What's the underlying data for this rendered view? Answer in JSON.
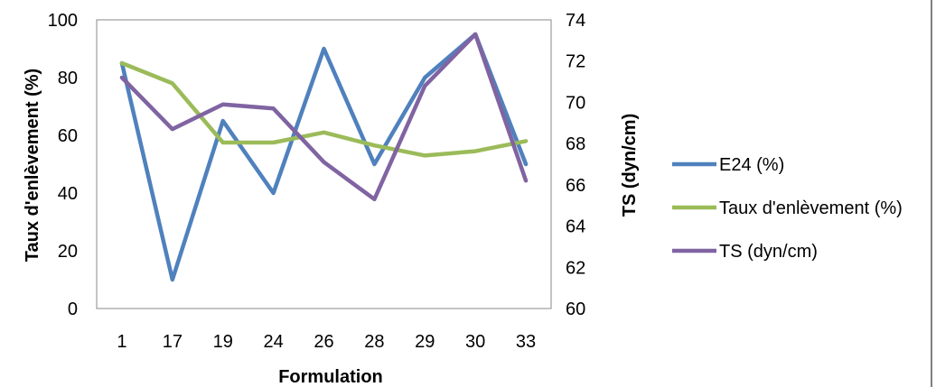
{
  "chart_data": {
    "type": "line",
    "categories": [
      "1",
      "17",
      "19",
      "24",
      "26",
      "28",
      "29",
      "30",
      "33"
    ],
    "xlabel": "Formulation",
    "ylabel_left": "Taux d'enlèvement (%)",
    "ylabel_right": "TS (dyn/cm)",
    "ylim_left": [
      0,
      100
    ],
    "yticks_left": [
      "0",
      "20",
      "40",
      "60",
      "80",
      "100"
    ],
    "ylim_right": [
      60,
      74
    ],
    "yticks_right": [
      "60",
      "62",
      "64",
      "66",
      "68",
      "70",
      "72",
      "74"
    ],
    "grid": false,
    "legend_position": "right",
    "series": [
      {
        "name": "E24 (%)",
        "axis": "left",
        "color": "#4f81bd",
        "values": [
          85,
          10,
          65,
          40,
          90,
          50,
          80,
          95,
          50
        ]
      },
      {
        "name": "Taux d'enlèvement (%)",
        "axis": "left",
        "color": "#9bbb59",
        "values": [
          85,
          78,
          57.5,
          57.5,
          61,
          56.5,
          53,
          54.5,
          58
        ]
      },
      {
        "name": "TS (dyn/cm)",
        "axis": "right",
        "color": "#8064a2",
        "values": [
          71.2,
          68.7,
          69.9,
          69.7,
          67.1,
          65.3,
          70.8,
          73.3,
          66.2
        ]
      }
    ]
  }
}
